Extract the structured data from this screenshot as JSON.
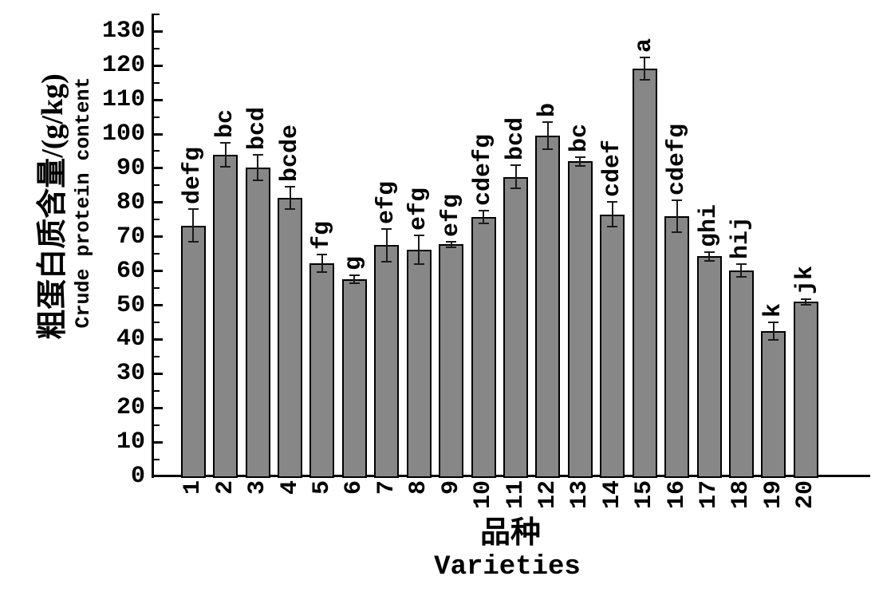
{
  "chart_data": {
    "type": "bar",
    "title": "",
    "categories": [
      "1",
      "2",
      "3",
      "4",
      "5",
      "6",
      "7",
      "8",
      "9",
      "10",
      "11",
      "12",
      "13",
      "14",
      "15",
      "16",
      "17",
      "18",
      "19",
      "20"
    ],
    "values": [
      73.3,
      93.9,
      90.2,
      81.4,
      62.2,
      57.6,
      67.5,
      66.3,
      67.8,
      75.8,
      87.5,
      99.5,
      92.0,
      76.5,
      119.1,
      76.0,
      64.3,
      60.2,
      42.4,
      51.0
    ],
    "error_bars": [
      4.7,
      3.5,
      3.8,
      3.2,
      2.6,
      1.2,
      4.7,
      4.2,
      0.8,
      1.9,
      3.3,
      4.0,
      1.3,
      3.6,
      3.2,
      4.7,
      1.3,
      1.9,
      2.5,
      0.8
    ],
    "sig_letters": [
      "defg",
      "bc",
      "bcd",
      "bcde",
      "fg",
      "g",
      "efg",
      "efg",
      "efg",
      "cdefg",
      "bcd",
      "b",
      "bc",
      "cdef",
      "a",
      "cdefg",
      "ghi",
      "hij",
      "k",
      "jk"
    ],
    "xlabel_zh": "品种",
    "xlabel_en": "Varieties",
    "ylabel_zh": "粗蛋白质含量/(g/kg)",
    "ylabel_en": "Crude protein content",
    "ylim": [
      0,
      130
    ],
    "yticks": [
      0,
      10,
      20,
      30,
      40,
      50,
      60,
      70,
      80,
      90,
      100,
      110,
      120,
      130
    ],
    "minor_tick_step": 5,
    "grid": false,
    "legend": false,
    "bar_color": "#878787",
    "bar_border_color": "#000000",
    "error_bar_color": "#1a1a1a",
    "axis_color": "#000000",
    "text_color": "#000000"
  }
}
